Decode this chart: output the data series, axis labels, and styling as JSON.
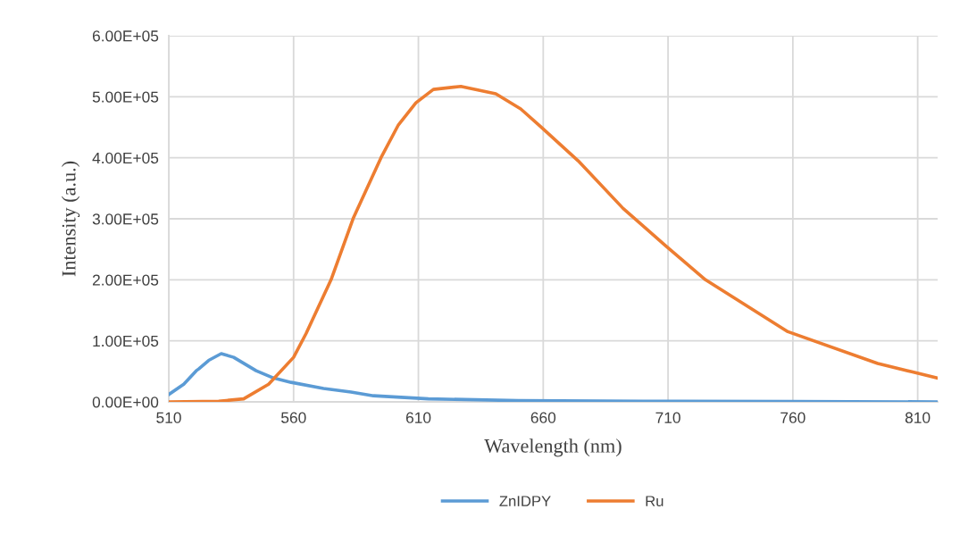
{
  "chart_data": {
    "type": "line",
    "xlabel": "Wavelength (nm)",
    "ylabel": "Intensity (a.u.)",
    "xlim": [
      510,
      818
    ],
    "xticks": [
      510,
      560,
      610,
      660,
      710,
      760,
      810
    ],
    "ylim": [
      0,
      600000
    ],
    "yticks": [
      {
        "value": 0,
        "label": "0.00E+00"
      },
      {
        "value": 100000,
        "label": "1.00E+05"
      },
      {
        "value": 200000,
        "label": "2.00E+05"
      },
      {
        "value": 300000,
        "label": "3.00E+05"
      },
      {
        "value": 400000,
        "label": "4.00E+05"
      },
      {
        "value": 500000,
        "label": "5.00E+05"
      },
      {
        "value": 600000,
        "label": "6.00E+05"
      }
    ],
    "grid": true,
    "legend": "bottom",
    "marker": "none",
    "line_style": "solid",
    "series": [
      {
        "name": "ZnIDPY",
        "color": "#5b9bd5",
        "x": [
          510,
          516,
          521,
          522,
          526,
          531,
          536,
          545,
          552,
          559,
          572,
          583,
          592,
          614,
          650,
          700,
          760,
          818
        ],
        "values": [
          12000,
          29000,
          51000,
          54000,
          68000,
          79000,
          73000,
          51000,
          39000,
          32000,
          22000,
          16000,
          10000,
          5000,
          2000,
          1000,
          500,
          0
        ]
      },
      {
        "name": "Ru",
        "color": "#ed7d31",
        "x": [
          510,
          530,
          540,
          550,
          560,
          565,
          575,
          584,
          595,
          602,
          609,
          616,
          627,
          641,
          651,
          659,
          674,
          692,
          709,
          725,
          758,
          794,
          808,
          818
        ],
        "values": [
          0,
          1000,
          5000,
          29000,
          73000,
          112000,
          200000,
          302000,
          400000,
          454000,
          490000,
          512000,
          517000,
          505000,
          480000,
          451000,
          395000,
          317000,
          256000,
          200000,
          115000,
          63000,
          49000,
          39000
        ]
      }
    ]
  }
}
